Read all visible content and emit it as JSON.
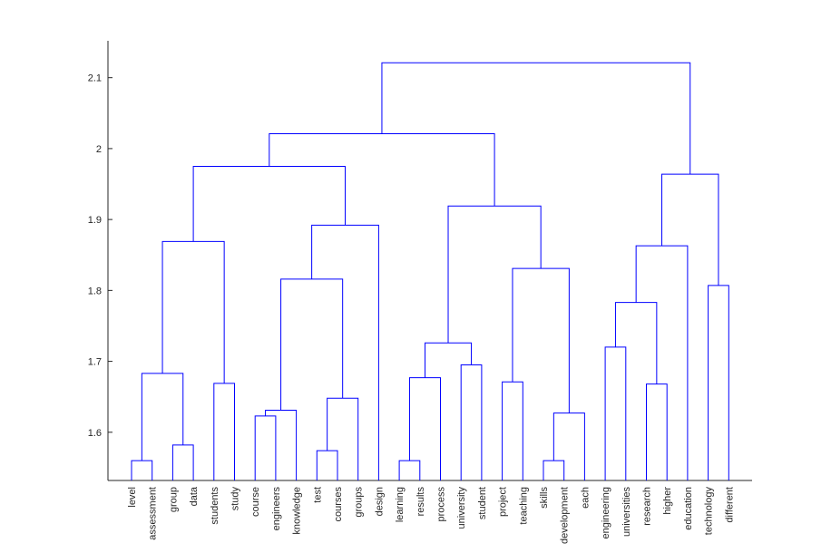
{
  "chart_data": {
    "type": "dendrogram",
    "title": "",
    "xlabel": "",
    "ylabel": "",
    "ylim": [
      1.532,
      2.152
    ],
    "yticks": [
      1.6,
      1.7,
      1.8,
      1.9,
      2.0,
      2.1
    ],
    "ytick_labels": [
      "1.6",
      "1.7",
      "1.8",
      "1.9",
      "2",
      "2.1"
    ],
    "link_color": "#0000ff",
    "leaves": [
      "level",
      "assessment",
      "group",
      "data",
      "students",
      "study",
      "course",
      "engineers",
      "knowledge",
      "test",
      "courses",
      "groups",
      "design",
      "learning",
      "results",
      "process",
      "university",
      "student",
      "project",
      "teaching",
      "skills",
      "development",
      "each",
      "engineering",
      "universities",
      "research",
      "higher",
      "education",
      "technology",
      "different"
    ],
    "merges": [
      {
        "id": "c1",
        "left": "level",
        "right": "assessment",
        "height": 1.56
      },
      {
        "id": "c2",
        "left": "group",
        "right": "data",
        "height": 1.582
      },
      {
        "id": "c3",
        "left": "c1",
        "right": "c2",
        "height": 1.683
      },
      {
        "id": "c4",
        "left": "students",
        "right": "study",
        "height": 1.669
      },
      {
        "id": "c5",
        "left": "c3",
        "right": "c4",
        "height": 1.869
      },
      {
        "id": "c6",
        "left": "course",
        "right": "engineers",
        "height": 1.623
      },
      {
        "id": "c7",
        "left": "c6",
        "right": "knowledge",
        "height": 1.631
      },
      {
        "id": "c8",
        "left": "test",
        "right": "courses",
        "height": 1.574
      },
      {
        "id": "c9",
        "left": "c8",
        "right": "groups",
        "height": 1.648
      },
      {
        "id": "c10",
        "left": "c7",
        "right": "c9",
        "height": 1.816
      },
      {
        "id": "c11",
        "left": "c10",
        "right": "design",
        "height": 1.892
      },
      {
        "id": "c12",
        "left": "c5",
        "right": "c11",
        "height": 1.975
      },
      {
        "id": "c13",
        "left": "learning",
        "right": "results",
        "height": 1.56
      },
      {
        "id": "c14",
        "left": "c13",
        "right": "process",
        "height": 1.677
      },
      {
        "id": "c15",
        "left": "university",
        "right": "student",
        "height": 1.695
      },
      {
        "id": "c16",
        "left": "c14",
        "right": "c15",
        "height": 1.726
      },
      {
        "id": "c17",
        "left": "project",
        "right": "teaching",
        "height": 1.671
      },
      {
        "id": "c18",
        "left": "skills",
        "right": "development",
        "height": 1.56
      },
      {
        "id": "c19",
        "left": "c18",
        "right": "each",
        "height": 1.627
      },
      {
        "id": "c20",
        "left": "c17",
        "right": "c19",
        "height": 1.831
      },
      {
        "id": "c21",
        "left": "c16",
        "right": "c20",
        "height": 1.919
      },
      {
        "id": "c22",
        "left": "c12",
        "right": "c21",
        "height": 2.021
      },
      {
        "id": "c23",
        "left": "engineering",
        "right": "universities",
        "height": 1.72
      },
      {
        "id": "c24",
        "left": "research",
        "right": "higher",
        "height": 1.668
      },
      {
        "id": "c25",
        "left": "c23",
        "right": "c24",
        "height": 1.783
      },
      {
        "id": "c26",
        "left": "c25",
        "right": "education",
        "height": 1.863
      },
      {
        "id": "c27",
        "left": "technology",
        "right": "different",
        "height": 1.807
      },
      {
        "id": "c28",
        "left": "c26",
        "right": "c27",
        "height": 1.964
      },
      {
        "id": "c29",
        "left": "c22",
        "right": "c28",
        "height": 2.121
      }
    ]
  }
}
